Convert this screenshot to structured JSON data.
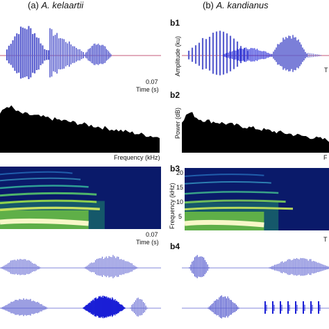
{
  "headers": {
    "col_a": {
      "prefix": "(a) ",
      "species": "A. kelaartii"
    },
    "col_b": {
      "prefix": "(b) ",
      "species": "A. kandianus"
    }
  },
  "panels": {
    "b1": "b1",
    "b2": "b2",
    "b3": "b3",
    "b4": "b4"
  },
  "axes": {
    "a_wave_tick": "0.07",
    "a_wave_xlabel": "Time (s)",
    "b_wave_ylabel": "Amplitude (ku)",
    "b_wave_xlabel_partial": "T",
    "a_power_xlabel": "Frequency (kHz)",
    "b_power_ylabel": "Power (dB)",
    "b_power_xlabel_partial": "F",
    "b_spec_ylabel": "Frequency (kHz)",
    "b_spec_ticks": [
      "20",
      "15",
      "10",
      "5"
    ],
    "a_spec_tick": "0.07",
    "a_spec_xlabel": "Time (s)",
    "b_spec_xlabel_partial": "T"
  },
  "colors": {
    "waveform": "#5a5fcf",
    "waveform_dark": "#1a1fd6",
    "baseline": "#c45a78",
    "power_fill": "#000000",
    "spec_bg": "#0a1a6a"
  }
}
